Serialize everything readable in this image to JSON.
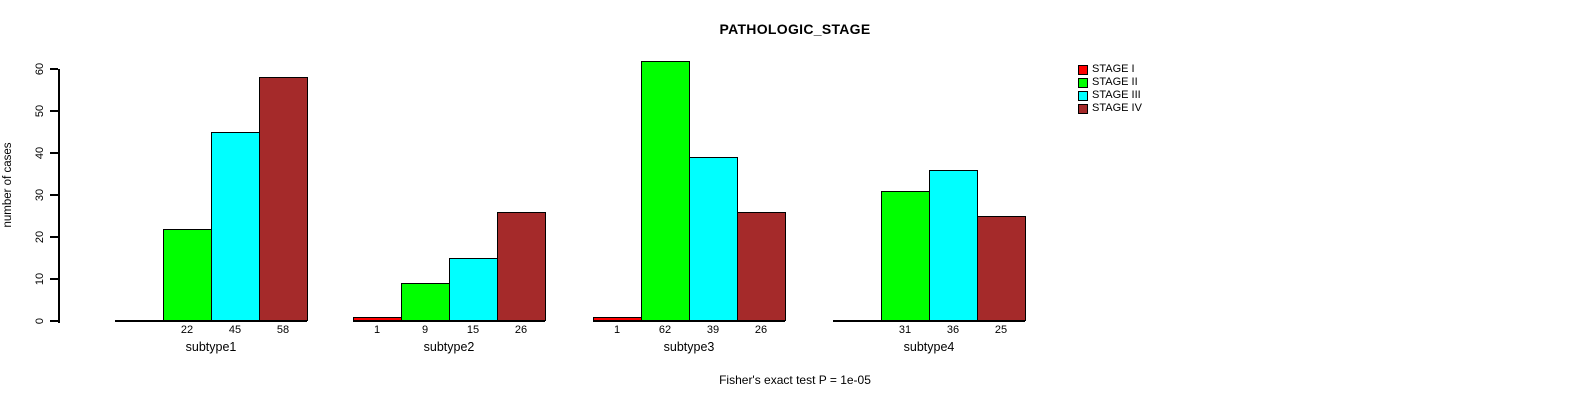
{
  "title": "PATHOLOGIC_STAGE",
  "footer": "Fisher's exact test P = 1e-05",
  "chart_data": {
    "type": "bar",
    "title": "PATHOLOGIC_STAGE",
    "xlabel": "",
    "ylabel": "number of cases",
    "categories": [
      "subtype1",
      "subtype2",
      "subtype3",
      "subtype4"
    ],
    "series": [
      {
        "name": "STAGE I",
        "color": "#FF0000",
        "values": [
          0,
          1,
          1,
          0
        ]
      },
      {
        "name": "STAGE II",
        "color": "#00FF00",
        "values": [
          22,
          9,
          62,
          31
        ]
      },
      {
        "name": "STAGE III",
        "color": "#00FFFF",
        "values": [
          45,
          15,
          39,
          36
        ]
      },
      {
        "name": "STAGE IV",
        "color": "#A52A2A",
        "values": [
          58,
          26,
          26,
          25
        ]
      }
    ],
    "bar_value_labels": [
      [
        "",
        "1",
        "1",
        ""
      ],
      [
        "22",
        "9",
        "62",
        "31"
      ],
      [
        "45",
        "15",
        "39",
        "36"
      ],
      [
        "58",
        "26",
        "26",
        "25"
      ]
    ],
    "yticks": [
      0,
      10,
      20,
      30,
      40,
      50,
      60
    ],
    "ylim": [
      0,
      60
    ],
    "grid": false,
    "legend_position": "top-right",
    "annotation": "Fisher's exact test P = 1e-05",
    "axis_color": "#000000",
    "background_color": "#FFFFFF"
  }
}
